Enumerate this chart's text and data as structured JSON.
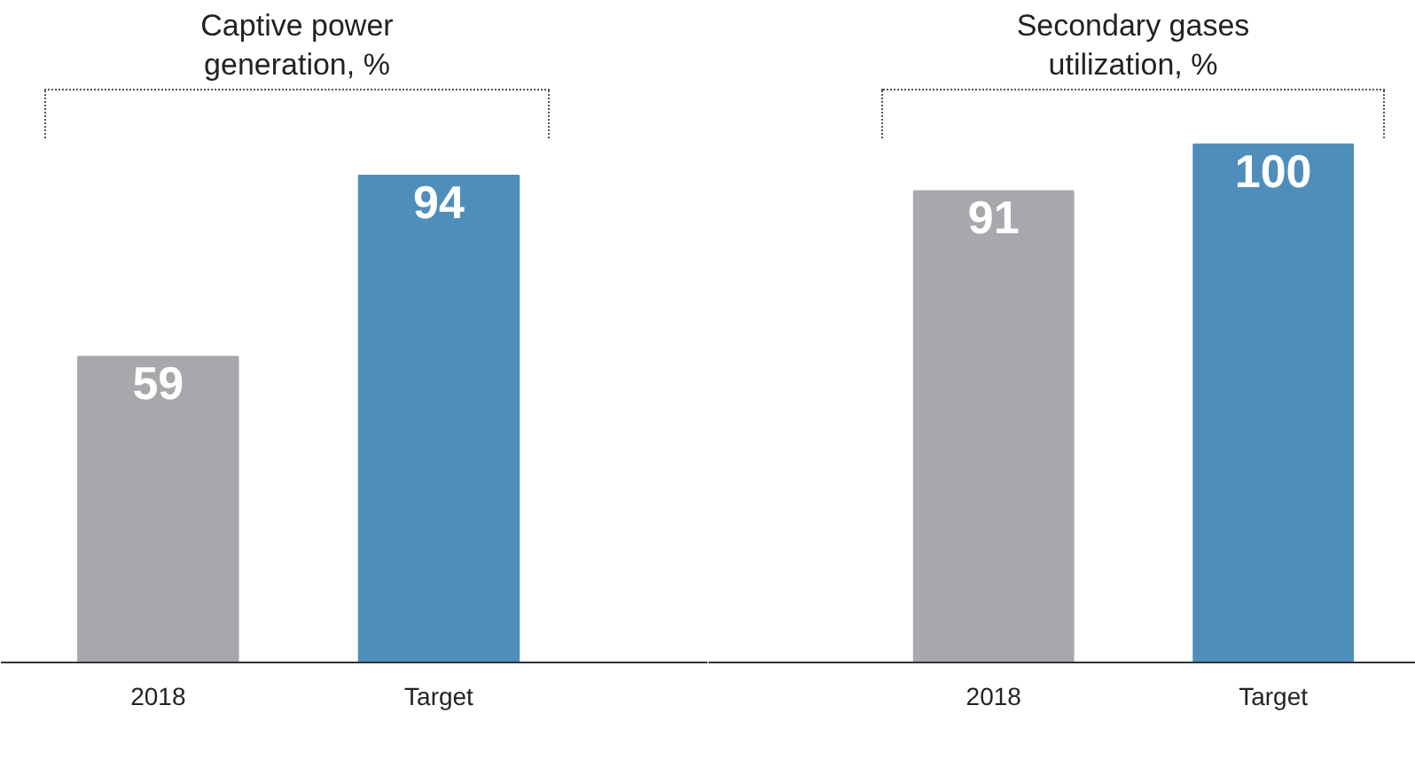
{
  "chart_data": [
    {
      "type": "bar",
      "title": "Captive power\ngeneration, %",
      "categories": [
        "2018",
        "Target"
      ],
      "values": [
        59,
        94
      ],
      "colors": [
        "#a7a8ab",
        "#4f8ebb"
      ],
      "data_labels": true
    },
    {
      "type": "bar",
      "title": "Secondary gases\nutilization, %",
      "categories": [
        "2018",
        "Target"
      ],
      "values": [
        91,
        100
      ],
      "colors": [
        "#a7a8ab",
        "#4f8ebb"
      ],
      "data_labels": true
    }
  ]
}
